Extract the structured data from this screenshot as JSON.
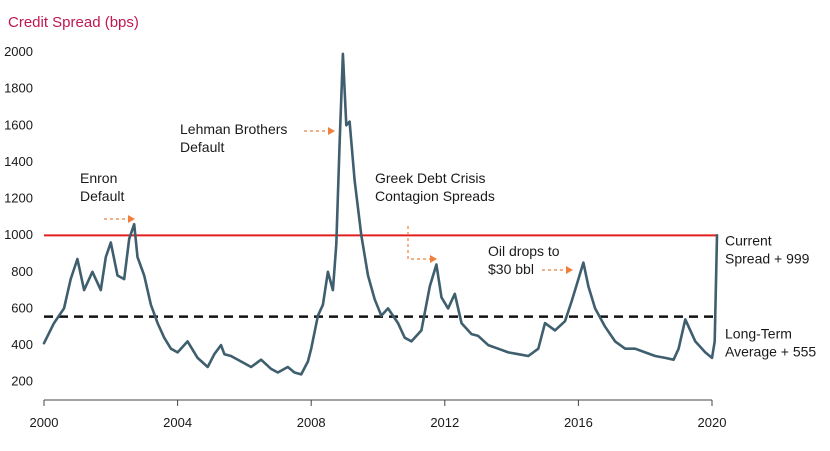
{
  "chart_data": {
    "type": "line",
    "ylabel": "Credit Spread (bps)",
    "ylim": [
      100,
      2000
    ],
    "xlim": [
      2000,
      2020
    ],
    "x_ticks": [
      "2000",
      "2004",
      "2008",
      "2012",
      "2016",
      "2020"
    ],
    "y_ticks": [
      "200",
      "400",
      "600",
      "800",
      "1000",
      "1200",
      "1400",
      "1600",
      "1800",
      "2000"
    ],
    "grid": false,
    "series": [
      {
        "color": "#3f5e6e",
        "x": [
          2000.0,
          2000.3,
          2000.6,
          2000.8,
          2001.0,
          2001.2,
          2001.45,
          2001.7,
          2001.85,
          2002.0,
          2002.2,
          2002.4,
          2002.55,
          2002.7,
          2002.8,
          2003.0,
          2003.2,
          2003.4,
          2003.6,
          2003.8,
          2004.0,
          2004.3,
          2004.6,
          2004.9,
          2005.1,
          2005.3,
          2005.4,
          2005.6,
          2005.9,
          2006.2,
          2006.5,
          2006.8,
          2007.0,
          2007.3,
          2007.5,
          2007.7,
          2007.9,
          2008.0,
          2008.2,
          2008.35,
          2008.5,
          2008.65,
          2008.75,
          2008.85,
          2008.95,
          2009.05,
          2009.15,
          2009.3,
          2009.5,
          2009.7,
          2009.9,
          2010.1,
          2010.3,
          2010.6,
          2010.8,
          2011.0,
          2011.3,
          2011.55,
          2011.75,
          2011.9,
          2012.1,
          2012.3,
          2012.5,
          2012.8,
          2013.0,
          2013.3,
          2013.6,
          2013.9,
          2014.2,
          2014.5,
          2014.8,
          2015.0,
          2015.3,
          2015.6,
          2015.8,
          2016.0,
          2016.15,
          2016.3,
          2016.5,
          2016.8,
          2017.1,
          2017.4,
          2017.7,
          2018.0,
          2018.3,
          2018.6,
          2018.85,
          2019.0,
          2019.2,
          2019.5,
          2019.8,
          2020.0,
          2020.08,
          2020.15
        ],
        "y": [
          410,
          520,
          600,
          760,
          870,
          700,
          800,
          700,
          880,
          960,
          780,
          760,
          980,
          1060,
          880,
          780,
          620,
          520,
          440,
          380,
          360,
          420,
          330,
          280,
          350,
          400,
          350,
          340,
          310,
          280,
          320,
          270,
          250,
          280,
          250,
          240,
          310,
          380,
          560,
          620,
          800,
          700,
          950,
          1500,
          1990,
          1600,
          1620,
          1300,
          1000,
          780,
          650,
          560,
          600,
          520,
          440,
          420,
          480,
          720,
          840,
          660,
          600,
          680,
          520,
          460,
          450,
          400,
          380,
          360,
          350,
          340,
          380,
          520,
          480,
          530,
          640,
          760,
          850,
          720,
          600,
          500,
          420,
          380,
          380,
          360,
          340,
          330,
          320,
          380,
          540,
          420,
          360,
          330,
          420,
          999
        ]
      }
    ],
    "reference_lines": [
      {
        "kind": "current",
        "y": 999,
        "color": "#e02020",
        "label_lines": [
          "Current",
          "Spread + 999"
        ]
      },
      {
        "kind": "average",
        "y": 555,
        "color": "#111111",
        "label_lines": [
          "Long-Term",
          "Average + 555"
        ]
      }
    ],
    "annotations": [
      {
        "lines": [
          "Enron",
          "Default"
        ],
        "point": [
          2002.75,
          1040
        ]
      },
      {
        "lines": [
          "Lehman Brothers",
          "Default"
        ],
        "point": [
          2008.75,
          1550
        ]
      },
      {
        "lines": [
          "Greek Debt Crisis",
          "Contagion Spreads"
        ],
        "point": [
          2011.8,
          800
        ]
      },
      {
        "lines": [
          "Oil drops to",
          "$30 bbl"
        ],
        "point": [
          2015.9,
          775
        ]
      }
    ],
    "colors": {
      "title": "#c0184f",
      "arrow": "#f07f3c"
    }
  }
}
